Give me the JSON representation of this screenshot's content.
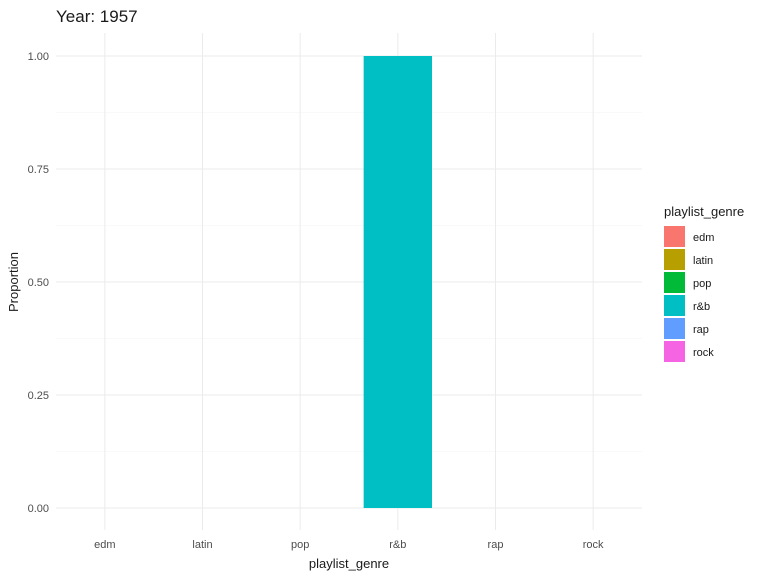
{
  "chart_data": {
    "type": "bar",
    "title": "Year: 1957",
    "xlabel": "playlist_genre",
    "ylabel": "Proportion",
    "categories": [
      "edm",
      "latin",
      "pop",
      "r&b",
      "rap",
      "rock"
    ],
    "values": [
      0,
      0,
      0,
      1,
      0,
      0
    ],
    "ylim": [
      0,
      1
    ],
    "yticks": [
      0,
      0.25,
      0.5,
      0.75,
      1
    ],
    "ytick_labels": [
      "0.00",
      "0.25",
      "0.50",
      "0.75",
      "1.00"
    ],
    "grid": true,
    "legend": {
      "title": "playlist_genre",
      "position": "right",
      "entries": [
        "edm",
        "latin",
        "pop",
        "r&b",
        "rap",
        "rock"
      ]
    },
    "colors": {
      "edm": "#F8766D",
      "latin": "#B79F00",
      "pop": "#00BA38",
      "r&b": "#00BFC4",
      "rap": "#619CFF",
      "rock": "#F564E3"
    }
  }
}
